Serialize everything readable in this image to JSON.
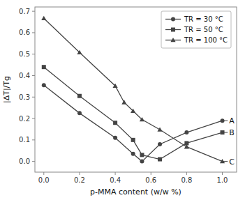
{
  "chart_data": {
    "type": "line",
    "xlabel": "p-MMA content (w/w %)",
    "ylabel": "|ΔT|/Tg",
    "series": [
      {
        "name": "TR = 30 °C",
        "color": "#444444",
        "marker": "circle",
        "x": [
          0.0,
          0.2,
          0.4,
          0.5,
          0.55,
          0.65,
          0.8,
          1.0
        ],
        "values": [
          0.355,
          0.225,
          0.11,
          0.035,
          0.0,
          0.08,
          0.135,
          0.19
        ]
      },
      {
        "name": "TR = 50 °C",
        "color": "#444444",
        "marker": "square",
        "x": [
          0.0,
          0.2,
          0.4,
          0.5,
          0.55,
          0.65,
          0.8,
          1.0
        ],
        "values": [
          0.44,
          0.305,
          0.18,
          0.1,
          0.03,
          0.01,
          0.085,
          0.135
        ]
      },
      {
        "name": "TR = 100 °C",
        "color": "#444444",
        "marker": "triangle",
        "x": [
          0.0,
          0.2,
          0.4,
          0.45,
          0.5,
          0.55,
          0.65,
          0.8,
          1.0
        ],
        "values": [
          0.667,
          0.508,
          0.352,
          0.275,
          0.235,
          0.195,
          0.148,
          0.068,
          0.0
        ]
      }
    ],
    "annotations": [
      {
        "text": "A",
        "x": 1.03,
        "y": 0.19,
        "line_from_x": 1.0
      },
      {
        "text": "B",
        "x": 1.03,
        "y": 0.135,
        "line_from_x": 1.0
      },
      {
        "text": "C",
        "x": 1.03,
        "y": 0.0,
        "line_from_x": 1.0
      }
    ],
    "xlim": [
      -0.05,
      1.08
    ],
    "ylim": [
      -0.05,
      0.72
    ],
    "xticks": [
      {
        "value": 0.0,
        "label": "0.0"
      },
      0.2,
      0.4,
      0.6,
      0.8,
      {
        "value": 1.0,
        "label": "1.0"
      }
    ],
    "yticks": [
      {
        "value": 0.0,
        "label": "0.0"
      },
      0.1,
      0.2,
      0.3,
      0.4,
      0.5,
      0.6,
      0.7
    ],
    "grid": false,
    "legend": "upper right"
  }
}
